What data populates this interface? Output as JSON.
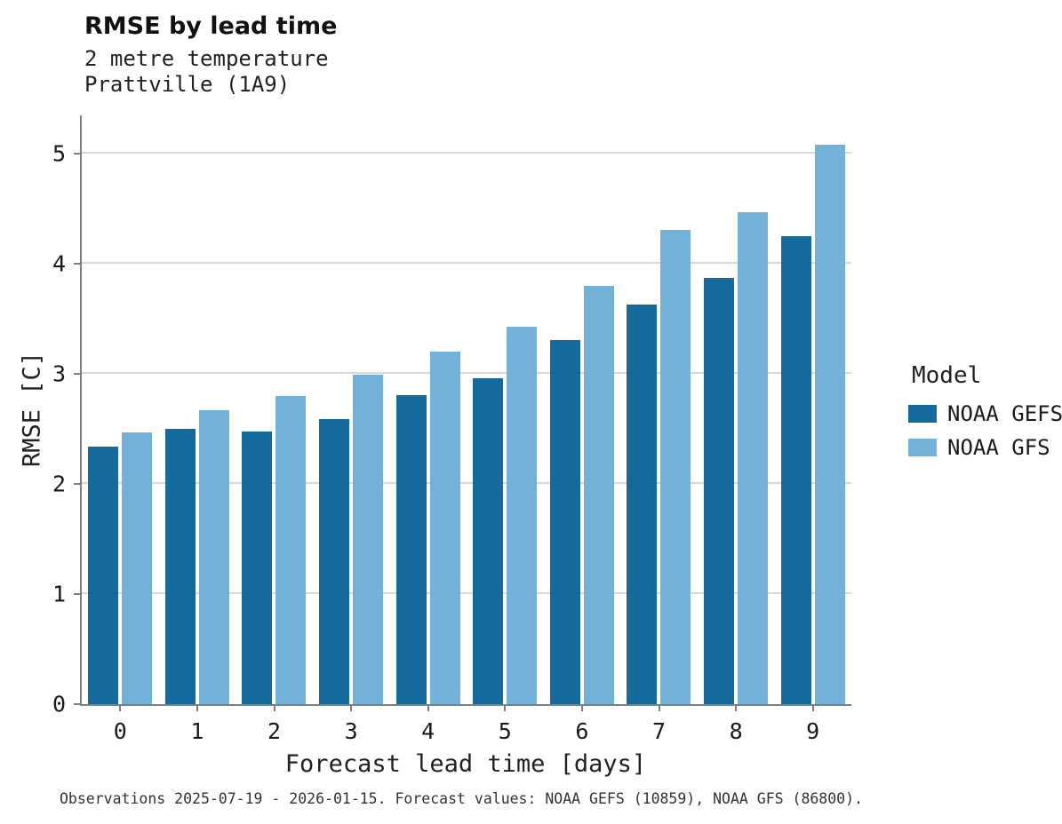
{
  "header": {
    "title": "RMSE by lead time",
    "subtitle": "2 metre temperature\nPrattville (1A9)"
  },
  "caption": "Observations 2025-07-19 - 2026-01-15. Forecast values: NOAA GEFS (10859), NOAA GFS (86800).",
  "legend": {
    "title": "Model",
    "entries": [
      {
        "label": "NOAA GEFS",
        "color": "#14699d"
      },
      {
        "label": "NOAA GFS",
        "color": "#72b2d9"
      }
    ]
  },
  "chart_data": {
    "type": "bar",
    "title": "RMSE by lead time",
    "subtitle": [
      "2 metre temperature",
      "Prattville (1A9)"
    ],
    "xlabel": "Forecast lead time [days]",
    "ylabel": "RMSE [C]",
    "categories": [
      0,
      1,
      2,
      3,
      4,
      5,
      6,
      7,
      8,
      9
    ],
    "series": [
      {
        "name": "NOAA GEFS",
        "color": "#14699d",
        "values": [
          2.34,
          2.5,
          2.48,
          2.59,
          2.81,
          2.96,
          3.31,
          3.63,
          3.87,
          4.25
        ]
      },
      {
        "name": "NOAA GFS",
        "color": "#72b2d9",
        "values": [
          2.47,
          2.67,
          2.8,
          2.99,
          3.2,
          3.43,
          3.8,
          4.31,
          4.47,
          5.08
        ]
      }
    ],
    "ylim": [
      0,
      5.35
    ],
    "yticks": [
      0,
      1,
      2,
      3,
      4,
      5
    ],
    "grid": true,
    "legend_position": "right"
  }
}
